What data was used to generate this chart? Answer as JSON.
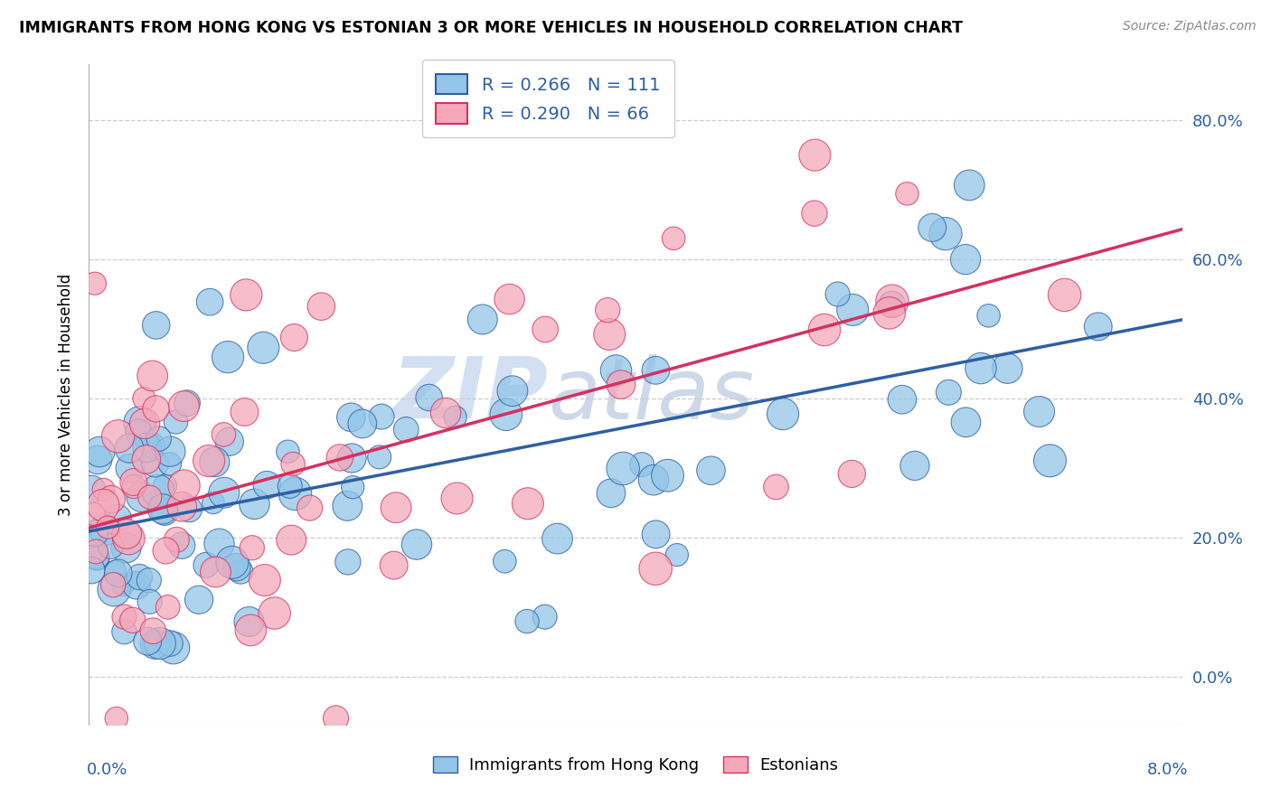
{
  "title": "IMMIGRANTS FROM HONG KONG VS ESTONIAN 3 OR MORE VEHICLES IN HOUSEHOLD CORRELATION CHART",
  "source": "Source: ZipAtlas.com",
  "ylabel": "3 or more Vehicles in Household",
  "ytick_vals": [
    0.0,
    0.2,
    0.4,
    0.6,
    0.8
  ],
  "xmin": 0.0,
  "xmax": 0.08,
  "ymin": -0.07,
  "ymax": 0.88,
  "legend1_label": "Immigrants from Hong Kong",
  "legend2_label": "Estonians",
  "r1": "0.266",
  "n1": "111",
  "r2": "0.290",
  "n2": "66",
  "color1": "#92C5E8",
  "color2": "#F4A8BA",
  "trendline1_color": "#2E5FA3",
  "trendline2_color": "#D63060",
  "watermark_zip": "ZIP",
  "watermark_atlas": "atlas",
  "dot_size": 500
}
